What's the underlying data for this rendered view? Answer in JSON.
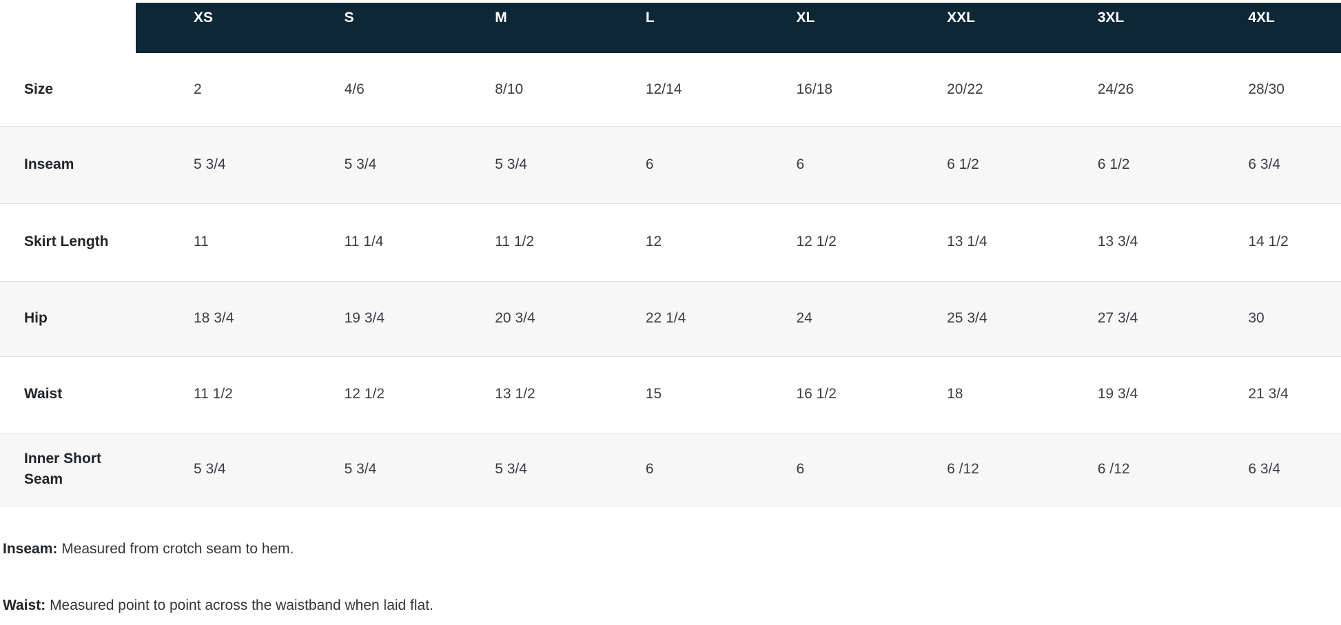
{
  "table": {
    "columns": [
      "XS",
      "S",
      "M",
      "L",
      "XL",
      "XXL",
      "3XL",
      "4XL"
    ],
    "rows": [
      {
        "label": "Size",
        "values": [
          "2",
          "4/6",
          "8/10",
          "12/14",
          "16/18",
          "20/22",
          "24/26",
          "28/30"
        ]
      },
      {
        "label": "Inseam",
        "values": [
          "5 3/4",
          "5 3/4",
          "5 3/4",
          "6",
          "6",
          "6 1/2",
          "6 1/2",
          "6 3/4"
        ]
      },
      {
        "label": "Skirt Length",
        "values": [
          "11",
          "11 1/4",
          "11 1/2",
          "12",
          "12 1/2",
          "13 1/4",
          "13 3/4",
          "14 1/2"
        ]
      },
      {
        "label": "Hip",
        "values": [
          "18 3/4",
          "19 3/4",
          "20 3/4",
          "22 1/4",
          "24",
          "25 3/4",
          "27 3/4",
          "30"
        ]
      },
      {
        "label": "Waist",
        "values": [
          "11 1/2",
          "12 1/2",
          "13 1/2",
          "15",
          "16 1/2",
          "18",
          "19 3/4",
          "21 3/4"
        ]
      },
      {
        "label": "Inner Short Seam",
        "values": [
          "5 3/4",
          "5 3/4",
          "5 3/4",
          "6",
          "6",
          "6 /12",
          "6 /12",
          "6 3/4"
        ]
      }
    ]
  },
  "notes": [
    {
      "term": "Inseam:",
      "description": " Measured from crotch seam to hem."
    },
    {
      "term": "Waist:",
      "description": " Measured point to point across the waistband when laid flat."
    }
  ],
  "colors": {
    "header_bg": "#0d2737",
    "header_text": "#ffffff",
    "stripe_bg": "#f7f7f8",
    "row_border": "#e2e2e2",
    "label_text": "#212427",
    "value_text": "#3a3e42"
  }
}
